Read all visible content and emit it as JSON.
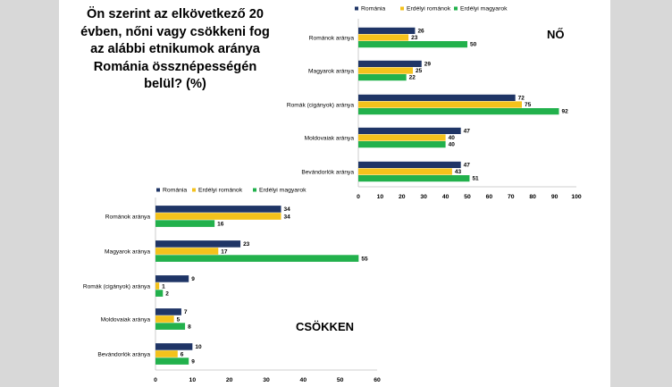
{
  "question": "Ön szerint az elkövetkező 20 évben, nőni vagy csökkeni fog az alábbi etnikumok aránya Románia össznépességén belül? (%)",
  "colors": {
    "romania": "#1f3566",
    "erdelyi_romanok": "#f4c21c",
    "erdelyi_magyarok": "#22b14c"
  },
  "chart_data": [
    {
      "type": "bar",
      "orientation": "horizontal",
      "chart_label": "NŐ",
      "categories": [
        "Románok aránya",
        "Magyarok aránya",
        "Romák (cigányok) aránya",
        "Moldovaiak aránya",
        "Bevándorlók aránya"
      ],
      "series": [
        {
          "name": "Románia",
          "values": [
            26,
            29,
            72,
            47,
            47
          ]
        },
        {
          "name": "Erdélyi románok",
          "values": [
            23,
            25,
            75,
            40,
            43
          ]
        },
        {
          "name": "Erdélyi magyarok",
          "values": [
            50,
            22,
            92,
            40,
            51
          ]
        }
      ],
      "xlim": [
        0,
        100
      ],
      "ticks": [
        0,
        10,
        20,
        30,
        40,
        50,
        60,
        70,
        80,
        90,
        100
      ],
      "legend_position": "top"
    },
    {
      "type": "bar",
      "orientation": "horizontal",
      "chart_label": "CSÖKKEN",
      "categories": [
        "Románok aránya",
        "Magyarok aránya",
        "Romák (cigányok) aránya",
        "Moldovaiak aránya",
        "Bevándorlók aránya"
      ],
      "series": [
        {
          "name": "Románia",
          "values": [
            34,
            23,
            9,
            7,
            10
          ]
        },
        {
          "name": "Erdélyi románok",
          "values": [
            34,
            17,
            1,
            5,
            6
          ]
        },
        {
          "name": "Erdélyi magyarok",
          "values": [
            16,
            55,
            2,
            8,
            9
          ]
        }
      ],
      "xlim": [
        0,
        60
      ],
      "ticks": [
        0,
        10,
        20,
        30,
        40,
        50,
        60
      ],
      "legend_position": "top"
    }
  ]
}
